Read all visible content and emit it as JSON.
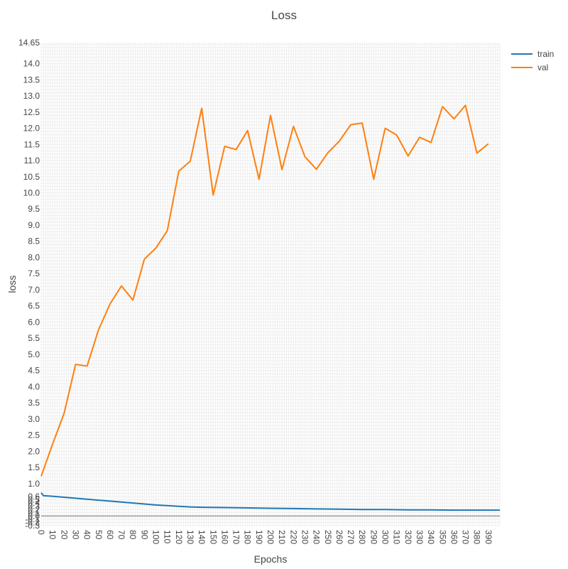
{
  "chart_data": {
    "type": "line",
    "title": "Loss",
    "xlabel": "Epochs",
    "ylabel": "loss",
    "xlim": [
      0,
      400
    ],
    "ylim": [
      -0.3,
      14.65
    ],
    "x_ticks": [
      0,
      10,
      20,
      30,
      40,
      50,
      60,
      70,
      80,
      90,
      100,
      110,
      120,
      130,
      140,
      150,
      160,
      170,
      180,
      190,
      200,
      210,
      220,
      230,
      240,
      250,
      260,
      270,
      280,
      290,
      300,
      310,
      320,
      330,
      340,
      350,
      360,
      370,
      380,
      390
    ],
    "y_ticks": [
      -0.3,
      -0.2,
      -0.1,
      0.0,
      0.1,
      0.2,
      0.3,
      0.4,
      0.5,
      0.6,
      1.0,
      1.5,
      2.0,
      2.5,
      3.0,
      3.5,
      4.0,
      4.5,
      5.0,
      5.5,
      6.0,
      6.5,
      7.0,
      7.5,
      8.0,
      8.5,
      9.0,
      9.5,
      10.0,
      10.5,
      11.0,
      11.5,
      12.0,
      12.5,
      13.0,
      13.5,
      14.0,
      14.65
    ],
    "top_tick_label": "14.65",
    "grid": true,
    "legend_position": "top-right",
    "series": [
      {
        "name": "train",
        "color": "#1f77b4",
        "x": [
          0,
          2,
          10,
          20,
          30,
          40,
          50,
          60,
          70,
          80,
          90,
          100,
          110,
          120,
          130,
          140,
          160,
          180,
          200,
          220,
          240,
          260,
          280,
          300,
          320,
          340,
          360,
          380,
          400
        ],
        "y": [
          0.72,
          0.63,
          0.61,
          0.58,
          0.55,
          0.52,
          0.49,
          0.46,
          0.43,
          0.4,
          0.37,
          0.34,
          0.32,
          0.3,
          0.28,
          0.27,
          0.26,
          0.25,
          0.24,
          0.23,
          0.22,
          0.21,
          0.2,
          0.2,
          0.19,
          0.19,
          0.18,
          0.18,
          0.18
        ]
      },
      {
        "name": "val",
        "color": "#ff7f0e",
        "x": [
          0,
          10,
          20,
          30,
          40,
          50,
          60,
          70,
          80,
          90,
          100,
          110,
          120,
          130,
          140,
          150,
          160,
          170,
          180,
          190,
          200,
          210,
          220,
          230,
          240,
          250,
          260,
          270,
          280,
          290,
          300,
          310,
          320,
          330,
          340,
          350,
          360,
          370,
          380,
          390
        ],
        "y": [
          1.23,
          2.23,
          3.18,
          4.69,
          4.64,
          5.76,
          6.56,
          7.12,
          6.68,
          7.95,
          8.29,
          8.83,
          10.67,
          10.98,
          12.62,
          9.93,
          11.44,
          11.34,
          11.93,
          10.42,
          12.4,
          10.72,
          12.06,
          11.12,
          10.73,
          11.24,
          11.6,
          12.11,
          12.16,
          10.42,
          12.0,
          11.79,
          11.14,
          11.72,
          11.56,
          12.67,
          12.29,
          12.71,
          11.23,
          11.52
        ]
      }
    ]
  }
}
